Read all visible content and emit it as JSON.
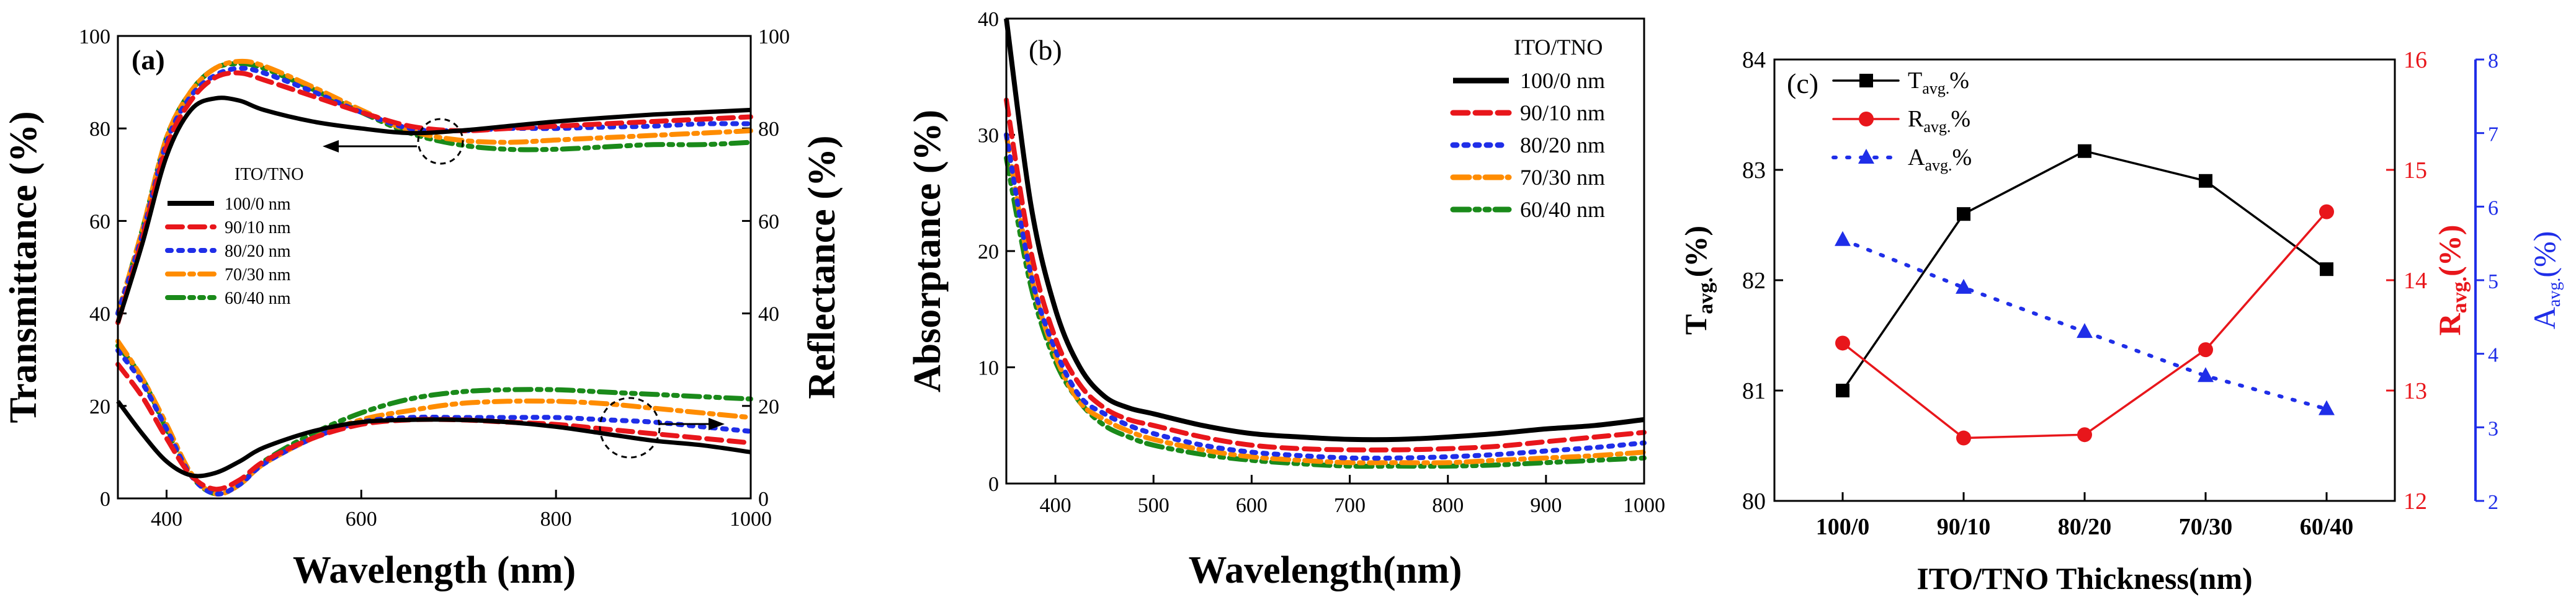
{
  "chart_data": [
    {
      "type": "line",
      "panel_label": "(a)",
      "xlabel": "Wavelength (nm)",
      "ylabel": "Transmittance (%)",
      "ylabel_right": "Reflectance (%)",
      "xlim": [
        350,
        1000
      ],
      "ylim": [
        0,
        100
      ],
      "ylim_right": [
        0,
        100
      ],
      "xticks": [
        400,
        600,
        800,
        1000
      ],
      "yticks": [
        0,
        20,
        40,
        60,
        80,
        100
      ],
      "yticks_right": [
        0,
        20,
        40,
        60,
        80,
        100
      ],
      "legend_title": "ITO/TNO",
      "legend_entries": [
        "100/0 nm",
        "90/10 nm",
        "80/20 nm",
        "70/30 nm",
        "60/40 nm"
      ],
      "colors": [
        "#000000",
        "#e8161b",
        "#1f2ee8",
        "#ff8c00",
        "#1a8a1a"
      ],
      "x": [
        350,
        375,
        400,
        425,
        450,
        475,
        500,
        550,
        600,
        650,
        700,
        750,
        800,
        850,
        900,
        950,
        1000
      ],
      "transmittance": [
        {
          "name": "100/0 nm",
          "values": [
            38,
            55,
            74,
            84,
            86.5,
            86,
            84,
            81.5,
            80,
            79,
            79.5,
            80.5,
            81.5,
            82.3,
            83,
            83.5,
            84
          ]
        },
        {
          "name": "90/10 nm",
          "values": [
            38,
            56,
            76,
            86,
            91,
            92,
            90.5,
            87,
            83.5,
            80.5,
            79.5,
            80,
            80.5,
            81,
            81.5,
            82,
            82.5
          ]
        },
        {
          "name": "80/20 nm",
          "values": [
            40,
            57,
            77,
            87,
            91.5,
            93,
            92,
            88,
            83.5,
            80,
            79.5,
            80,
            80,
            80.3,
            80.5,
            81,
            81
          ]
        },
        {
          "name": "70/30 nm",
          "values": [
            40,
            58,
            78,
            88,
            93,
            94.5,
            93.5,
            89,
            84,
            79.5,
            77.5,
            77,
            77.5,
            78,
            78.5,
            79,
            79.5
          ]
        },
        {
          "name": "60/40 nm",
          "values": [
            40,
            58,
            78,
            88,
            93,
            94,
            93,
            88.5,
            83.5,
            79,
            76.5,
            75.5,
            75.5,
            76,
            76.5,
            76.5,
            77
          ]
        }
      ],
      "reflectance": [
        {
          "name": "100/0 nm",
          "values": [
            21,
            14,
            8,
            5,
            5.5,
            8,
            11,
            14.5,
            16.5,
            17,
            17,
            16.5,
            15.5,
            14,
            12.5,
            11.5,
            10
          ]
        },
        {
          "name": "90/10 nm",
          "values": [
            29,
            22,
            13,
            5,
            2,
            4,
            8,
            13,
            16,
            17,
            17,
            16.5,
            16,
            15,
            14,
            13,
            12
          ]
        },
        {
          "name": "80/20 nm",
          "values": [
            32,
            25,
            15,
            5,
            1,
            3,
            7.5,
            13,
            16.5,
            17.5,
            17.5,
            17.5,
            17.5,
            17,
            16.5,
            15.5,
            14.5
          ]
        },
        {
          "name": "70/30 nm",
          "values": [
            34,
            26,
            16,
            5.5,
            1,
            3,
            7.5,
            13,
            17,
            19,
            20.5,
            21,
            21,
            20.5,
            19.5,
            18.5,
            17.5
          ]
        },
        {
          "name": "60/40 nm",
          "values": [
            33,
            26,
            15,
            5,
            1,
            3,
            8,
            14,
            18.5,
            21.5,
            23,
            23.5,
            23.5,
            23,
            22.5,
            22,
            21.5
          ]
        }
      ]
    },
    {
      "type": "line",
      "panel_label": "(b)",
      "xlabel": "Wavelength(nm)",
      "ylabel": "Absorptance (%)",
      "xlim": [
        350,
        1000
      ],
      "ylim": [
        0,
        40
      ],
      "xticks": [
        400,
        500,
        600,
        700,
        800,
        900,
        1000
      ],
      "yticks": [
        0,
        10,
        20,
        30,
        40
      ],
      "legend_title": "ITO/TNO",
      "colors": [
        "#000000",
        "#e8161b",
        "#1f2ee8",
        "#ff8c00",
        "#1a8a1a"
      ],
      "x": [
        350,
        375,
        400,
        425,
        450,
        475,
        500,
        550,
        600,
        650,
        700,
        750,
        800,
        850,
        900,
        950,
        1000
      ],
      "series": [
        {
          "name": "100/0 nm",
          "values": [
            40,
            24,
            15,
            10,
            7.5,
            6.5,
            6,
            5,
            4.3,
            4,
            3.8,
            3.8,
            4,
            4.3,
            4.7,
            5,
            5.5
          ]
        },
        {
          "name": "90/10 nm",
          "values": [
            33,
            20,
            12.5,
            8.5,
            6.5,
            5.5,
            5,
            4,
            3.3,
            3,
            2.9,
            2.9,
            3,
            3.2,
            3.6,
            4,
            4.4
          ]
        },
        {
          "name": "80/20 nm",
          "values": [
            30,
            18,
            11.5,
            7.5,
            6,
            5,
            4.3,
            3.3,
            2.7,
            2.4,
            2.2,
            2.2,
            2.3,
            2.5,
            2.8,
            3.1,
            3.5
          ]
        },
        {
          "name": "70/30 nm",
          "values": [
            30,
            18,
            11,
            7,
            5.5,
            4.5,
            3.8,
            2.9,
            2.3,
            2,
            1.8,
            1.8,
            1.8,
            2,
            2.2,
            2.4,
            2.7
          ]
        },
        {
          "name": "60/40 nm",
          "values": [
            28,
            17,
            10.5,
            7,
            5,
            4,
            3.3,
            2.5,
            2,
            1.7,
            1.5,
            1.5,
            1.5,
            1.6,
            1.8,
            2,
            2.2
          ]
        }
      ]
    },
    {
      "type": "line",
      "panel_label": "(c)",
      "xlabel": "ITO/TNO Thickness(nm)",
      "categories": [
        "100/0",
        "90/10",
        "80/20",
        "70/30",
        "60/40"
      ],
      "ylim_T": [
        80,
        84
      ],
      "ylim_R": [
        12,
        16
      ],
      "ylim_A": [
        2,
        8
      ],
      "yticks_T": [
        80,
        81,
        82,
        83,
        84
      ],
      "yticks_R": [
        12,
        13,
        14,
        15,
        16
      ],
      "yticks_A": [
        2,
        3,
        4,
        5,
        6,
        7,
        8
      ],
      "ylabel_T": {
        "base": "T",
        "sub": "avg.",
        "tail": "(%)"
      },
      "ylabel_R": {
        "base": "R",
        "sub": "avg.",
        "tail": "(%)"
      },
      "ylabel_A": {
        "base": "A",
        "sub": "avg.",
        "tail": "(%)"
      },
      "series": [
        {
          "name": "T",
          "sub": "avg.",
          "suffix": "%",
          "axis": "T",
          "color": "#000000",
          "values": [
            81.0,
            82.6,
            83.17,
            82.9,
            82.1
          ]
        },
        {
          "name": "R",
          "sub": "avg.",
          "suffix": "%",
          "axis": "R",
          "color": "#e8161b",
          "values": [
            13.43,
            12.57,
            12.6,
            13.37,
            14.62
          ]
        },
        {
          "name": "A",
          "sub": "avg.",
          "suffix": "%",
          "axis": "A",
          "color": "#1f2ee8",
          "values": [
            5.55,
            4.9,
            4.3,
            3.7,
            3.25
          ]
        }
      ]
    }
  ]
}
